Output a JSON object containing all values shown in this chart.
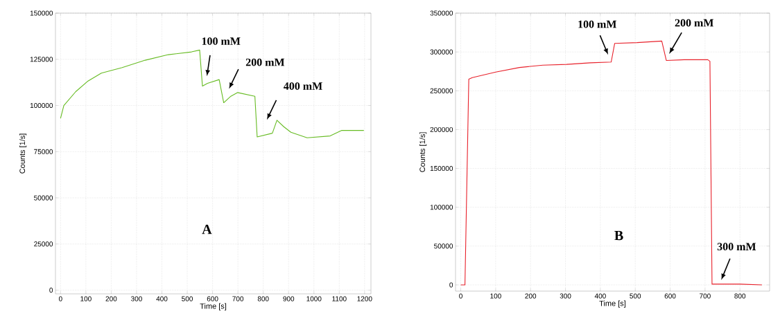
{
  "chart_data": [
    {
      "type": "line",
      "xlabel": "Time [s]",
      "ylabel": "Counts [1/s]",
      "xlim": [
        -20,
        1225
      ],
      "ylim": [
        -2000,
        150000
      ],
      "xticks": [
        0,
        100,
        200,
        300,
        400,
        500,
        600,
        700,
        800,
        900,
        1000,
        1100,
        1200
      ],
      "yticks": [
        0,
        25000,
        50000,
        75000,
        100000,
        125000,
        150000
      ],
      "grid": true,
      "x": [
        0,
        13,
        60,
        106,
        161,
        243,
        334,
        425,
        517,
        549,
        560,
        580,
        626,
        644,
        672,
        699,
        767,
        776,
        836,
        854,
        881,
        909,
        973,
        1064,
        1110,
        1197
      ],
      "series": [
        {
          "color": "#66bb22",
          "values": [
            93000,
            100000,
            107500,
            113000,
            117500,
            120500,
            124500,
            127500,
            129000,
            130000,
            110500,
            112000,
            114000,
            101500,
            105000,
            107000,
            105000,
            83000,
            85000,
            92000,
            88500,
            85500,
            82500,
            83500,
            86500,
            86500
          ]
        }
      ],
      "annotations": [
        "100 mM",
        "200 mM",
        "400 mM",
        "A"
      ]
    },
    {
      "type": "line",
      "xlabel": "Time [s]",
      "ylabel": "Counts [1/s]",
      "xlim": [
        -15,
        885
      ],
      "ylim": [
        -8000,
        350000
      ],
      "xticks": [
        0,
        100,
        200,
        300,
        400,
        500,
        600,
        700,
        800
      ],
      "yticks": [
        0,
        50000,
        100000,
        150000,
        200000,
        250000,
        300000,
        350000
      ],
      "grid": true,
      "x": [
        0,
        12,
        23,
        33,
        100,
        168,
        235,
        303,
        370,
        431,
        441,
        505,
        576,
        589,
        640,
        708,
        714,
        720,
        800,
        863
      ],
      "series": [
        {
          "color": "#e8202a",
          "values": [
            0,
            0,
            265000,
            267000,
            274000,
            280000,
            283000,
            284000,
            286000,
            287000,
            311000,
            312000,
            314000,
            289000,
            290000,
            290000,
            288000,
            1000,
            1000,
            0
          ]
        }
      ],
      "annotations": [
        "100 mM",
        "200 mM",
        "300 mM",
        "B"
      ]
    }
  ]
}
